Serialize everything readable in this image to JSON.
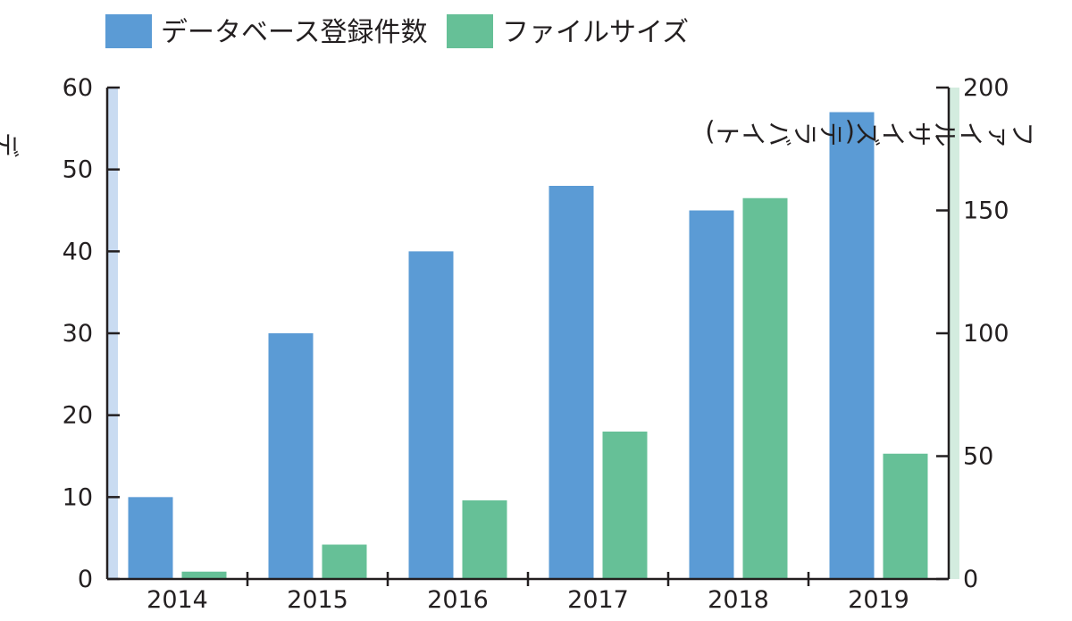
{
  "chart_data": {
    "type": "bar",
    "categories": [
      "2014",
      "2015",
      "2016",
      "2017",
      "2018",
      "2019"
    ],
    "series": [
      {
        "name": "データベース登録件数",
        "axis": "left",
        "color": "#5b9bd5",
        "values": [
          10,
          30,
          40,
          48,
          45,
          57
        ]
      },
      {
        "name": "ファイルサイズ",
        "axis": "right",
        "color": "#66c097",
        "values": [
          3,
          14,
          32,
          60,
          155,
          51
        ]
      }
    ],
    "ylabel": "データベース登録件数",
    "ylabel_right": "ファイルサイズ(テラバイト)",
    "ylim": [
      0,
      60
    ],
    "ylim_right": [
      0,
      200
    ],
    "yticks": [
      "0",
      "10",
      "20",
      "30",
      "40",
      "50",
      "60"
    ],
    "yticks_right": [
      "0",
      "50",
      "100",
      "150",
      "200"
    ],
    "legend_position": "top-left",
    "grid": false
  },
  "colors": {
    "left_axis_band": "#c9dbf1",
    "right_axis_band": "#d3ecdf",
    "axis": "#231f20"
  }
}
